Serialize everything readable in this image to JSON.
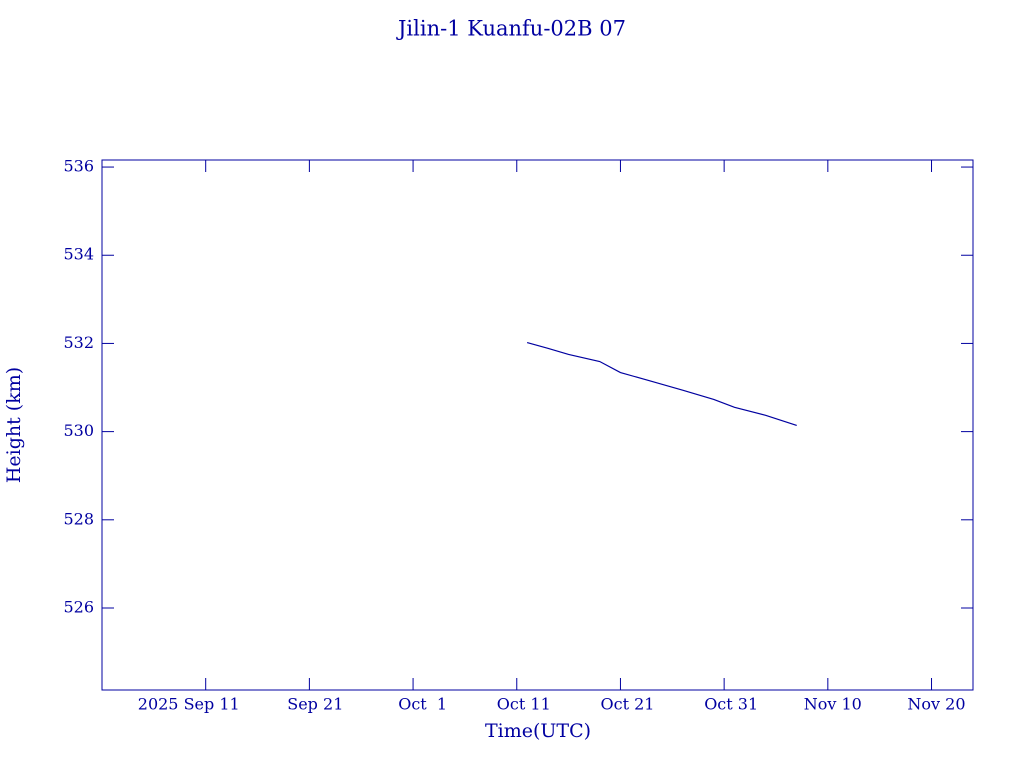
{
  "chart_data": {
    "type": "line",
    "title": "Jilin-1 Kuanfu-02B 07",
    "x_label": "Time(UTC)",
    "y_label": "Height (km)",
    "x": [
      "2025-10-12",
      "2025-10-14",
      "2025-10-16",
      "2025-10-19",
      "2025-10-21",
      "2025-10-24",
      "2025-10-27",
      "2025-10-30",
      "2025-11-01",
      "2025-11-04",
      "2025-11-07"
    ],
    "series": [
      {
        "color": "#0000a0",
        "values": [
          532.02,
          531.89,
          531.75,
          531.59,
          531.34,
          531.14,
          530.94,
          530.73,
          530.55,
          530.37,
          530.14
        ]
      }
    ],
    "xlim": [
      "2025-09-01",
      "2025-11-24"
    ],
    "xticks": [
      {
        "value": "2025-09-11",
        "label": "2025 Sep 11"
      },
      {
        "value": "2025-09-21",
        "label": "Sep 21"
      },
      {
        "value": "2025-10-01",
        "label": "Oct  1"
      },
      {
        "value": "2025-10-11",
        "label": "Oct 11"
      },
      {
        "value": "2025-10-21",
        "label": "Oct 21"
      },
      {
        "value": "2025-10-31",
        "label": "Oct 31"
      },
      {
        "value": "2025-11-10",
        "label": "Nov 10"
      },
      {
        "value": "2025-11-20",
        "label": "Nov 20"
      }
    ],
    "ylim": [
      524.14,
      536.16
    ],
    "yticks": [
      526,
      528,
      530,
      532,
      534,
      536
    ],
    "grid": false
  }
}
